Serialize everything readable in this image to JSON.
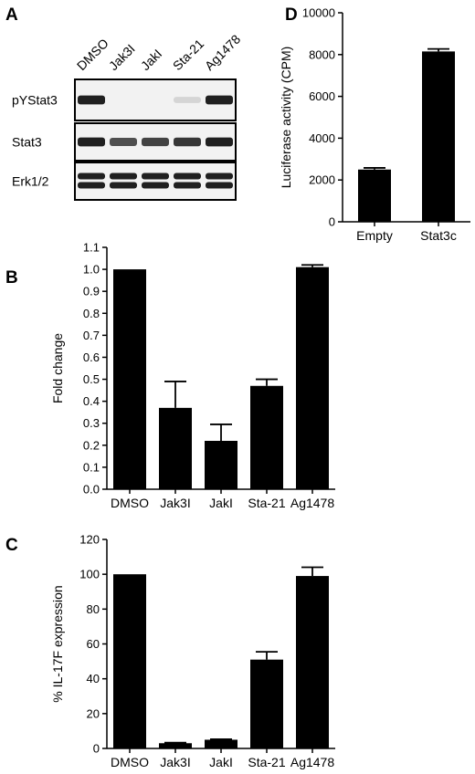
{
  "panels": {
    "A": "A",
    "B": "B",
    "C": "C",
    "D": "D"
  },
  "blot": {
    "lanes": [
      "DMSO",
      "Jak3I",
      "JakI",
      "Sta-21",
      "Ag1478"
    ],
    "rows": [
      {
        "label": "pYStat3",
        "intensity": [
          0.95,
          0.0,
          0.0,
          0.18,
          0.95
        ],
        "doublet": false
      },
      {
        "label": "Stat3",
        "intensity": [
          0.95,
          0.75,
          0.8,
          0.85,
          0.95
        ],
        "doublet": false
      },
      {
        "label": "Erk1/2",
        "intensity": [
          0.95,
          0.95,
          0.95,
          0.95,
          0.95
        ],
        "doublet": true
      }
    ]
  },
  "chart_data": [
    {
      "id": "B",
      "type": "bar",
      "categories": [
        "DMSO",
        "Jak3I",
        "JakI",
        "Sta-21",
        "Ag1478"
      ],
      "values": [
        1.0,
        0.37,
        0.22,
        0.47,
        1.01
      ],
      "errors": [
        0,
        0.12,
        0.075,
        0.03,
        0.01
      ],
      "ylabel": "Fold change",
      "ylim": [
        0,
        1.1
      ],
      "yticks": [
        "0.0",
        "0.1",
        "0.2",
        "0.3",
        "0.4",
        "0.5",
        "0.6",
        "0.7",
        "0.8",
        "0.9",
        "1.0",
        "1.1"
      ],
      "bar_color": "#000000"
    },
    {
      "id": "C",
      "type": "bar",
      "categories": [
        "DMSO",
        "Jak3I",
        "JakI",
        "Sta-21",
        "Ag1478"
      ],
      "values": [
        100,
        3,
        5,
        51,
        99
      ],
      "errors": [
        0,
        0.3,
        0.3,
        4.5,
        5
      ],
      "ylabel": "% IL-17F expression",
      "ylim": [
        0,
        120
      ],
      "yticks": [
        "0",
        "20",
        "40",
        "60",
        "80",
        "100",
        "120"
      ],
      "bar_color": "#000000"
    },
    {
      "id": "D",
      "type": "bar",
      "categories": [
        "Empty",
        "Stat3c"
      ],
      "values": [
        2500,
        8150
      ],
      "errors": [
        80,
        120
      ],
      "ylabel": "Luciferase activity (CPM)",
      "ylim": [
        0,
        10000
      ],
      "yticks": [
        "0",
        "2000",
        "4000",
        "6000",
        "8000",
        "10000"
      ],
      "bar_color": "#000000"
    }
  ]
}
